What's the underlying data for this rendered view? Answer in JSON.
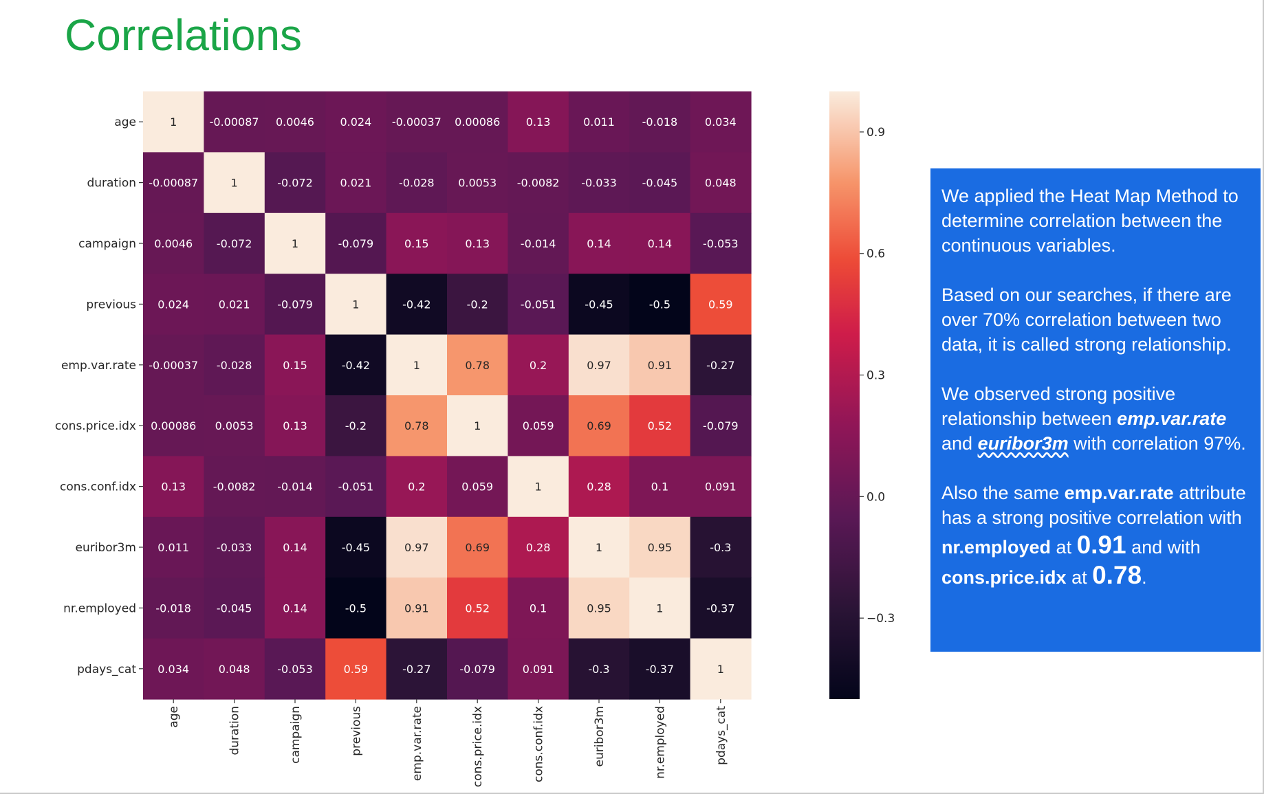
{
  "slide": {
    "title": "Correlations"
  },
  "info": {
    "p1": "We applied the Heat Map Method to determine correlation between the continuous variables.",
    "p2": "Based on our searches, if there are over 70% correlation between two data, it is called strong relationship.",
    "p3_a": "We observed strong positive relationship between ",
    "p3_b": "emp.var.rate",
    "p3_c": " and ",
    "p3_d": "euribor3m",
    "p3_e": " with correlation 97%.",
    "p4_a": "Also the same ",
    "p4_b": "emp.var.rate",
    "p4_c": " attribute has a strong positive correlation with ",
    "p4_d": "nr.employed",
    "p4_e": " at ",
    "p4_f": "0.91",
    "p4_g": " and with ",
    "p4_h": "cons.price.idx",
    "p4_i": " at ",
    "p4_j": "0.78",
    "p4_k": "."
  },
  "colors": {
    "title": "#1aa547",
    "info_box": "#1a6ce2",
    "colormap": "rocket"
  },
  "chart_data": {
    "type": "heatmap",
    "title": "",
    "variables": [
      "age",
      "duration",
      "campaign",
      "previous",
      "emp.var.rate",
      "cons.price.idx",
      "cons.conf.idx",
      "euribor3m",
      "nr.employed",
      "pdays_cat"
    ],
    "matrix": [
      [
        1,
        -0.00087,
        0.0046,
        0.024,
        -0.00037,
        0.00086,
        0.13,
        0.011,
        -0.018,
        0.034
      ],
      [
        -0.00087,
        1,
        -0.072,
        0.021,
        -0.028,
        0.0053,
        -0.0082,
        -0.033,
        -0.045,
        0.048
      ],
      [
        0.0046,
        -0.072,
        1,
        -0.079,
        0.15,
        0.13,
        -0.014,
        0.14,
        0.14,
        -0.053
      ],
      [
        0.024,
        0.021,
        -0.079,
        1,
        -0.42,
        -0.2,
        -0.051,
        -0.45,
        -0.5,
        0.59
      ],
      [
        -0.00037,
        -0.028,
        0.15,
        -0.42,
        1,
        0.78,
        0.2,
        0.97,
        0.91,
        -0.27
      ],
      [
        0.00086,
        0.0053,
        0.13,
        -0.2,
        0.78,
        1,
        0.059,
        0.69,
        0.52,
        -0.079
      ],
      [
        0.13,
        -0.0082,
        -0.014,
        -0.051,
        0.2,
        0.059,
        1,
        0.28,
        0.1,
        0.091
      ],
      [
        0.011,
        -0.033,
        0.14,
        -0.45,
        0.97,
        0.69,
        0.28,
        1,
        0.95,
        -0.3
      ],
      [
        -0.018,
        -0.045,
        0.14,
        -0.5,
        0.91,
        0.52,
        0.1,
        0.95,
        1,
        -0.37
      ],
      [
        0.034,
        0.048,
        -0.053,
        0.59,
        -0.27,
        -0.079,
        0.091,
        -0.3,
        -0.37,
        1
      ]
    ],
    "colorbar": {
      "ticks": [
        0.9,
        0.6,
        0.3,
        0.0,
        -0.3
      ],
      "tick_labels": [
        "0.9",
        "0.6",
        "0.3",
        "0.0",
        "−0.3"
      ],
      "range": [
        -0.5,
        1.0
      ]
    }
  }
}
